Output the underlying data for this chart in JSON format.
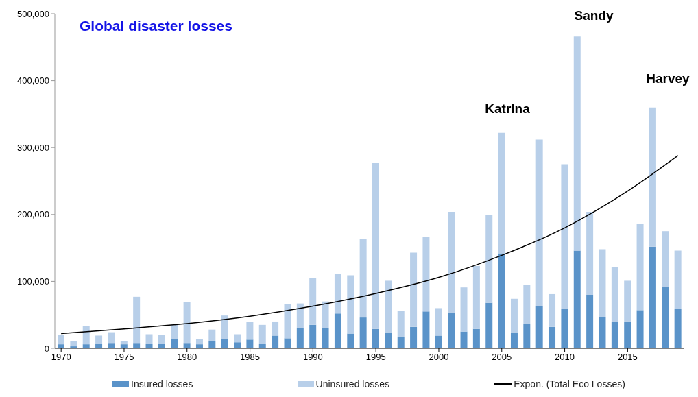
{
  "chart_data": {
    "type": "bar",
    "title": "Global disaster losses",
    "stacked": true,
    "x": [
      1970,
      1971,
      1972,
      1973,
      1974,
      1975,
      1976,
      1977,
      1978,
      1979,
      1980,
      1981,
      1982,
      1983,
      1984,
      1985,
      1986,
      1987,
      1988,
      1989,
      1990,
      1991,
      1992,
      1993,
      1994,
      1995,
      1996,
      1997,
      1998,
      1999,
      2000,
      2001,
      2002,
      2003,
      2004,
      2005,
      2006,
      2007,
      2008,
      2009,
      2010,
      2011,
      2012,
      2013,
      2014,
      2015,
      2016,
      2017,
      2018,
      2019
    ],
    "series": [
      {
        "name": "Insured losses",
        "color": "#5a93c9",
        "values": [
          6000,
          3000,
          6000,
          7000,
          8000,
          6000,
          8000,
          7000,
          7000,
          14000,
          8000,
          6000,
          11000,
          14000,
          9000,
          13000,
          7000,
          19000,
          15000,
          30000,
          35000,
          30000,
          52000,
          22000,
          46000,
          29000,
          24000,
          17000,
          32000,
          55000,
          19000,
          53000,
          25000,
          29000,
          68000,
          142000,
          24000,
          36000,
          63000,
          32000,
          59000,
          146000,
          80000,
          47000,
          39000,
          40000,
          57000,
          152000,
          92000,
          59000
        ]
      },
      {
        "name": "Uninsured losses",
        "color": "#b8cfe9",
        "values": [
          14000,
          8000,
          27000,
          12000,
          16000,
          5000,
          69000,
          14000,
          13000,
          21000,
          61000,
          8000,
          17000,
          35000,
          12000,
          26000,
          28000,
          21000,
          51000,
          37000,
          70000,
          40000,
          59000,
          87000,
          118000,
          248000,
          77000,
          39000,
          111000,
          112000,
          41000,
          151000,
          66000,
          94000,
          131000,
          180000,
          50000,
          59000,
          249000,
          49000,
          216000,
          320000,
          124000,
          101000,
          82000,
          61000,
          129000,
          208000,
          83000,
          87000
        ]
      },
      {
        "name": "Expon. (Total Eco Losses)",
        "type": "line",
        "color": "#000000",
        "x": [
          1970,
          1975,
          1980,
          1985,
          1990,
          1995,
          2000,
          2005,
          2010,
          2015,
          2019
        ],
        "values": [
          22000,
          29000,
          37000,
          48000,
          63000,
          82000,
          106000,
          139000,
          180000,
          235000,
          288000
        ]
      }
    ],
    "xlim": [
      1969.5,
      2019.5
    ],
    "xticks": [
      1970,
      1975,
      1980,
      1985,
      1990,
      1995,
      2000,
      2005,
      2010,
      2015
    ],
    "ylim": [
      0,
      500000
    ],
    "yticks": [
      0,
      {
        "value": 100000,
        "label": "100,000"
      },
      {
        "value": 200000,
        "label": "200,000"
      },
      {
        "value": 300000,
        "label": "300,000"
      },
      {
        "value": 400000,
        "label": "400,000"
      },
      {
        "value": 500000,
        "label": "500,000"
      }
    ],
    "grid": false,
    "legend": "bottom",
    "annotations": [
      "Katrina",
      "Sandy",
      "Harvey"
    ]
  }
}
